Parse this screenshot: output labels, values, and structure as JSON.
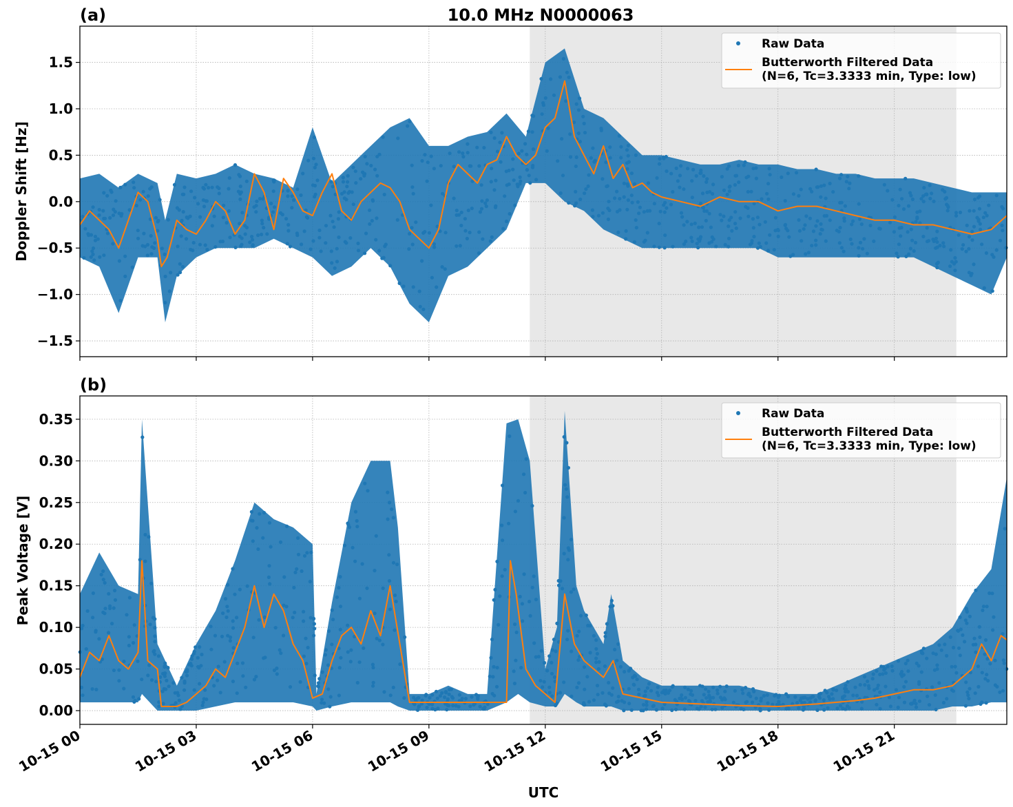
{
  "chart_data": [
    {
      "type": "line",
      "panel_label": "(a)",
      "title": "10.0 MHz N0000063",
      "xlabel": "",
      "ylabel": "Doppler Shift [Hz]",
      "ylim": [
        -1.67,
        1.89
      ],
      "xlim_hours": [
        0,
        23.9
      ],
      "yticks": [
        -1.5,
        -1.0,
        -0.5,
        0.0,
        0.5,
        1.0,
        1.5
      ],
      "ytick_labels": [
        "−1.5",
        "−1.0",
        "−0.5",
        "0.0",
        "0.5",
        "1.0",
        "1.5"
      ],
      "grid": true,
      "legend_position": "top-right",
      "shaded_interval_hours": [
        11.6,
        22.6
      ],
      "series": [
        {
          "name": "Raw Data",
          "style": "scatter",
          "color": "#1f77b4",
          "x_hours": [
            0,
            0.5,
            1,
            1.5,
            2,
            2.2,
            2.5,
            3,
            3.5,
            4,
            4.5,
            5,
            5.5,
            6,
            6.5,
            7,
            7.5,
            8,
            8.5,
            9,
            9.5,
            10,
            10.5,
            11,
            11.5,
            12,
            12.5,
            13,
            13.5,
            14,
            14.5,
            15,
            15.5,
            16,
            16.5,
            17,
            17.5,
            18,
            18.5,
            19,
            19.5,
            20,
            20.5,
            21,
            21.5,
            22,
            22.5,
            23,
            23.5,
            23.9
          ],
          "upper": [
            0.25,
            0.3,
            0.15,
            0.3,
            0.2,
            -0.2,
            0.3,
            0.25,
            0.3,
            0.4,
            0.3,
            0.25,
            0.15,
            0.8,
            0.2,
            0.4,
            0.6,
            0.8,
            0.9,
            0.6,
            0.6,
            0.7,
            0.75,
            0.95,
            0.7,
            1.5,
            1.65,
            1.0,
            0.9,
            0.7,
            0.5,
            0.5,
            0.45,
            0.4,
            0.4,
            0.45,
            0.4,
            0.4,
            0.35,
            0.35,
            0.3,
            0.3,
            0.25,
            0.25,
            0.25,
            0.2,
            0.15,
            0.1,
            0.1,
            0.1
          ],
          "lower": [
            -0.6,
            -0.7,
            -1.2,
            -0.6,
            -0.6,
            -1.3,
            -0.8,
            -0.6,
            -0.5,
            -0.5,
            -0.5,
            -0.4,
            -0.5,
            -0.6,
            -0.8,
            -0.7,
            -0.5,
            -0.7,
            -1.1,
            -1.3,
            -0.8,
            -0.7,
            -0.5,
            -0.3,
            0.2,
            0.2,
            0.0,
            -0.1,
            -0.3,
            -0.4,
            -0.5,
            -0.5,
            -0.5,
            -0.5,
            -0.5,
            -0.5,
            -0.5,
            -0.6,
            -0.6,
            -0.6,
            -0.6,
            -0.6,
            -0.6,
            -0.6,
            -0.6,
            -0.7,
            -0.8,
            -0.9,
            -1.0,
            -0.6
          ]
        },
        {
          "name": "Butterworth Filtered Data\n(N=6, Tc=3.3333 min, Type: low)",
          "style": "line",
          "color": "#ff7f0e",
          "x_hours": [
            0,
            0.25,
            0.5,
            0.75,
            1,
            1.25,
            1.5,
            1.75,
            2,
            2.1,
            2.25,
            2.5,
            2.75,
            3,
            3.25,
            3.5,
            3.75,
            4,
            4.25,
            4.5,
            4.75,
            5,
            5.25,
            5.5,
            5.75,
            6,
            6.25,
            6.5,
            6.75,
            7,
            7.25,
            7.5,
            7.75,
            8,
            8.25,
            8.5,
            8.75,
            9,
            9.25,
            9.5,
            9.75,
            10,
            10.25,
            10.5,
            10.75,
            11,
            11.25,
            11.5,
            11.75,
            12,
            12.25,
            12.5,
            12.75,
            13,
            13.25,
            13.5,
            13.75,
            14,
            14.25,
            14.5,
            14.75,
            15,
            15.5,
            16,
            16.5,
            17,
            17.5,
            18,
            18.5,
            19,
            19.5,
            20,
            20.5,
            21,
            21.5,
            22,
            22.5,
            23,
            23.5,
            23.9
          ],
          "values": [
            -0.25,
            -0.1,
            -0.2,
            -0.3,
            -0.5,
            -0.2,
            0.1,
            0.0,
            -0.4,
            -0.7,
            -0.6,
            -0.2,
            -0.3,
            -0.35,
            -0.2,
            0.0,
            -0.1,
            -0.35,
            -0.2,
            0.3,
            0.1,
            -0.3,
            0.25,
            0.1,
            -0.1,
            -0.15,
            0.1,
            0.3,
            -0.1,
            -0.2,
            0.0,
            0.1,
            0.2,
            0.15,
            0.0,
            -0.3,
            -0.4,
            -0.5,
            -0.3,
            0.2,
            0.4,
            0.3,
            0.2,
            0.4,
            0.45,
            0.7,
            0.5,
            0.4,
            0.5,
            0.8,
            0.9,
            1.3,
            0.7,
            0.5,
            0.3,
            0.6,
            0.25,
            0.4,
            0.15,
            0.2,
            0.1,
            0.05,
            0.0,
            -0.05,
            0.05,
            0.0,
            0.0,
            -0.1,
            -0.05,
            -0.05,
            -0.1,
            -0.15,
            -0.2,
            -0.2,
            -0.25,
            -0.25,
            -0.3,
            -0.35,
            -0.3,
            -0.15
          ]
        }
      ]
    },
    {
      "type": "line",
      "panel_label": "(b)",
      "title": "",
      "xlabel": "UTC",
      "ylabel": "Peak Voltage [V]",
      "ylim": [
        -0.0165,
        0.378
      ],
      "xlim_hours": [
        0,
        23.9
      ],
      "yticks": [
        0.0,
        0.05,
        0.1,
        0.15,
        0.2,
        0.25,
        0.3,
        0.35
      ],
      "ytick_labels": [
        "0.00",
        "0.05",
        "0.10",
        "0.15",
        "0.20",
        "0.25",
        "0.30",
        "0.35"
      ],
      "xticks_hours": [
        0,
        3,
        6,
        9,
        12,
        15,
        18,
        21
      ],
      "xtick_labels": [
        "10-15 00",
        "10-15 03",
        "10-15 06",
        "10-15 09",
        "10-15 12",
        "10-15 15",
        "10-15 18",
        "10-15 21"
      ],
      "grid": true,
      "legend_position": "top-right",
      "shaded_interval_hours": [
        11.6,
        22.6
      ],
      "series": [
        {
          "name": "Raw Data",
          "style": "scatter",
          "color": "#1f77b4",
          "x_hours": [
            0,
            0.5,
            1,
            1.5,
            1.6,
            1.9,
            2.0,
            2.5,
            3,
            3.5,
            4,
            4.5,
            5,
            5.5,
            6,
            6.1,
            6.5,
            7,
            7.5,
            8,
            8.2,
            8.5,
            9,
            9.5,
            10,
            10.5,
            11,
            11.3,
            11.6,
            12,
            12.3,
            12.5,
            12.8,
            13,
            13.5,
            13.7,
            14,
            14.5,
            15,
            16,
            17,
            18,
            19,
            20,
            21,
            22,
            22.5,
            23,
            23.5,
            23.9
          ],
          "upper": [
            0.14,
            0.19,
            0.15,
            0.14,
            0.35,
            0.15,
            0.08,
            0.03,
            0.08,
            0.12,
            0.18,
            0.25,
            0.23,
            0.22,
            0.2,
            0.02,
            0.13,
            0.25,
            0.3,
            0.3,
            0.22,
            0.02,
            0.02,
            0.03,
            0.02,
            0.02,
            0.345,
            0.35,
            0.3,
            0.05,
            0.1,
            0.36,
            0.15,
            0.12,
            0.08,
            0.14,
            0.06,
            0.04,
            0.03,
            0.03,
            0.03,
            0.02,
            0.02,
            0.04,
            0.06,
            0.08,
            0.1,
            0.14,
            0.17,
            0.28
          ],
          "lower": [
            0.01,
            0.01,
            0.01,
            0.01,
            0.02,
            0.005,
            0.0,
            0.0,
            0.0,
            0.005,
            0.01,
            0.01,
            0.01,
            0.01,
            0.005,
            0.0,
            0.005,
            0.01,
            0.01,
            0.01,
            0.005,
            0.0,
            0.0,
            0.0,
            0.0,
            0.0,
            0.01,
            0.02,
            0.01,
            0.005,
            0.005,
            0.02,
            0.01,
            0.005,
            0.005,
            0.005,
            0.0,
            0.0,
            0.0,
            0.0,
            0.0,
            0.0,
            0.0,
            0.0,
            0.0,
            0.0,
            0.005,
            0.005,
            0.01,
            0.01
          ]
        },
        {
          "name": "Butterworth Filtered Data\n(N=6, Tc=3.3333 min, Type: low)",
          "style": "line",
          "color": "#ff7f0e",
          "x_hours": [
            0,
            0.25,
            0.5,
            0.75,
            1,
            1.25,
            1.5,
            1.6,
            1.75,
            2,
            2.1,
            2.25,
            2.5,
            2.75,
            3,
            3.25,
            3.5,
            3.75,
            4,
            4.25,
            4.5,
            4.75,
            5,
            5.25,
            5.5,
            5.75,
            6,
            6.25,
            6.5,
            6.75,
            7,
            7.25,
            7.5,
            7.75,
            8,
            8.25,
            8.5,
            9,
            9.5,
            10,
            10.5,
            11,
            11.1,
            11.25,
            11.5,
            11.75,
            12,
            12.25,
            12.5,
            12.75,
            13,
            13.25,
            13.5,
            13.75,
            14,
            14.5,
            15,
            16,
            17,
            18,
            19,
            20,
            20.5,
            21,
            21.5,
            22,
            22.5,
            23,
            23.25,
            23.5,
            23.75,
            23.9
          ],
          "values": [
            0.04,
            0.07,
            0.06,
            0.09,
            0.06,
            0.05,
            0.07,
            0.18,
            0.06,
            0.05,
            0.005,
            0.005,
            0.005,
            0.01,
            0.02,
            0.03,
            0.05,
            0.04,
            0.07,
            0.1,
            0.15,
            0.1,
            0.14,
            0.12,
            0.08,
            0.06,
            0.015,
            0.02,
            0.06,
            0.09,
            0.1,
            0.08,
            0.12,
            0.09,
            0.15,
            0.08,
            0.01,
            0.01,
            0.01,
            0.01,
            0.01,
            0.01,
            0.18,
            0.14,
            0.05,
            0.03,
            0.02,
            0.01,
            0.14,
            0.08,
            0.06,
            0.05,
            0.04,
            0.06,
            0.02,
            0.015,
            0.01,
            0.008,
            0.006,
            0.005,
            0.008,
            0.012,
            0.015,
            0.02,
            0.025,
            0.025,
            0.03,
            0.05,
            0.08,
            0.06,
            0.09,
            0.085
          ]
        }
      ]
    }
  ],
  "legend": {
    "raw_label": "Raw Data",
    "filtered_label_line1": "Butterworth Filtered Data",
    "filtered_label_line2": "(N=6, Tc=3.3333 min, Type: low)"
  },
  "colors": {
    "raw": "#1f77b4",
    "filtered": "#ff7f0e",
    "shade": "#e8e8e8",
    "grid": "#b0b0b0"
  }
}
